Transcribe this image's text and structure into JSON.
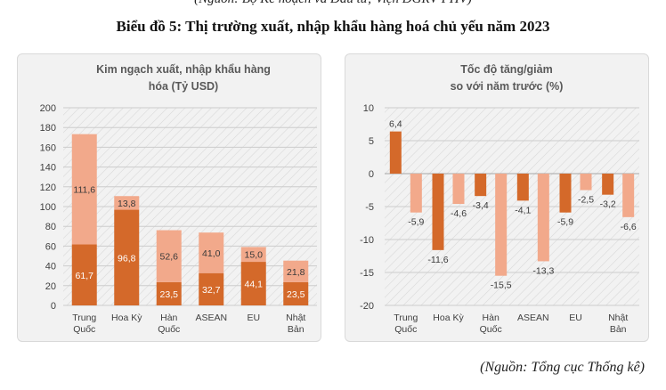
{
  "header": {
    "top_line": "(Nguồn: Bộ Kế hoạch và Đầu tư; Viện DGRV-PHV)",
    "title": "Biểu đồ 5: Thị trường xuất, nhập khẩu hàng hoá chủ yếu năm 2023"
  },
  "source": "(Nguồn: Tổng cục Thống kê)",
  "colors": {
    "dark": "#d4692a",
    "light": "#f2a98b",
    "grid": "#cccccc"
  },
  "chart_data": [
    {
      "type": "bar",
      "stacked": true,
      "title_lines": [
        "Kim ngạch xuất, nhập khẩu hàng",
        "hóa (Tỷ USD)"
      ],
      "categories": [
        [
          "Trung",
          "Quốc"
        ],
        [
          "Hoa Kỳ"
        ],
        [
          "Hàn",
          "Quốc"
        ],
        [
          "ASEAN"
        ],
        [
          "EU"
        ],
        [
          "Nhật",
          "Bản"
        ]
      ],
      "series": [
        {
          "values": [
            61.7,
            96.8,
            23.5,
            32.7,
            44.1,
            23.5
          ],
          "labels": [
            "61,7",
            "96,8",
            "23,5",
            "32,7",
            "44,1",
            "23,5"
          ],
          "color": "#d4692a"
        },
        {
          "values": [
            111.6,
            13.8,
            52.6,
            41.0,
            15.0,
            21.8
          ],
          "labels": [
            "111,6",
            "13,8",
            "52,6",
            "41,0",
            "15,0",
            "21,8"
          ],
          "color": "#f2a98b"
        }
      ],
      "ylim": [
        0,
        200
      ],
      "yticks": [
        0,
        20,
        40,
        60,
        80,
        100,
        120,
        140,
        160,
        180,
        200
      ],
      "ytick_labels": [
        "0",
        "20",
        "40",
        "60",
        "80",
        "100",
        "120",
        "140",
        "160",
        "180",
        "200"
      ],
      "grid": true,
      "hatched_background": true
    },
    {
      "type": "bar",
      "grouped": true,
      "title_lines": [
        "Tốc độ tăng/giảm",
        "so với năm trước (%)"
      ],
      "categories": [
        [
          "Trung",
          "Quốc"
        ],
        [
          "Hoa Kỳ"
        ],
        [
          "Hàn",
          "Quốc"
        ],
        [
          "ASEAN"
        ],
        [
          "EU"
        ],
        [
          "Nhật",
          "Bản"
        ]
      ],
      "series": [
        {
          "values": [
            6.4,
            -11.6,
            -3.4,
            -4.1,
            -5.9,
            -3.2
          ],
          "labels": [
            "6,4",
            "-11,6",
            "-3,4",
            "-4,1",
            "-5,9",
            "-3,2"
          ],
          "color": "#d4692a"
        },
        {
          "values": [
            -5.9,
            -4.6,
            -15.5,
            -13.3,
            -2.5,
            -6.6
          ],
          "labels": [
            "-5,9",
            "-4,6",
            "-15,5",
            "-13,3",
            "-2,5",
            "-6,6"
          ],
          "color": "#f2a98b"
        }
      ],
      "ylim": [
        -20,
        10
      ],
      "yticks": [
        -20,
        -15,
        -10,
        -5,
        0,
        5,
        10
      ],
      "ytick_labels": [
        "-20",
        "-15",
        "-10",
        "-5",
        "0",
        "5",
        "10"
      ],
      "grid": true,
      "hatched_background": true
    }
  ]
}
